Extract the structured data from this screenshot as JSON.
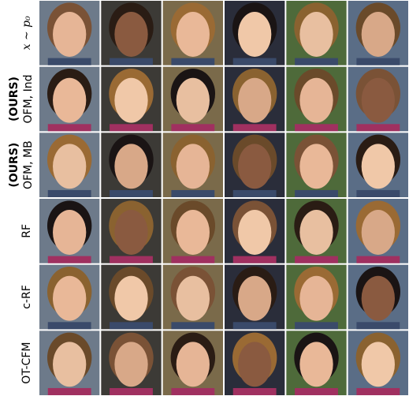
{
  "rows": [
    {
      "label": "x ∼ p₀"
    },
    {
      "tag": "(OURS)",
      "label": "OFM, Ind"
    },
    {
      "tag": "(OURS)",
      "label": "OFM, MB"
    },
    {
      "label": "RF"
    },
    {
      "label": "c-RF"
    },
    {
      "label": "OT-CFM"
    }
  ]
}
